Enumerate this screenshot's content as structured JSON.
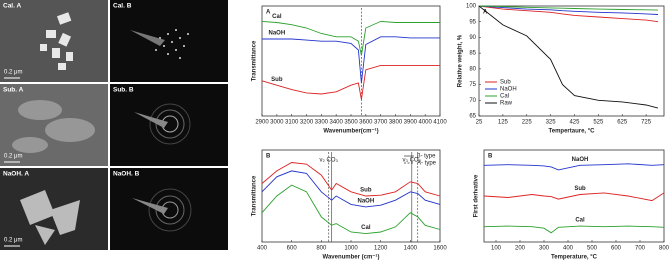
{
  "images": [
    {
      "label": "Cal. A",
      "scale": "0.2 μm"
    },
    {
      "label": "Cal. B"
    },
    {
      "label": "Sub. A",
      "scale": "0.2 μm"
    },
    {
      "label": "Sub. B"
    },
    {
      "label": "NaOH. A",
      "scale": "0.2 μm"
    },
    {
      "label": "NaOH. B"
    }
  ],
  "chart_data": [
    {
      "type": "line",
      "panel": "A",
      "x_label": "Wavenumber(cm⁻¹)",
      "y_label": "Transmittance",
      "xlim": [
        2900,
        4100
      ],
      "ylim": [
        0,
        1
      ],
      "xticks": [
        2900,
        3000,
        3100,
        3200,
        3300,
        3400,
        3500,
        3600,
        3700,
        3800,
        3900,
        4000,
        4100
      ],
      "legend": "inline-left",
      "x": [
        2900,
        3000,
        3100,
        3200,
        3300,
        3400,
        3500,
        3550,
        3570,
        3600,
        3700,
        3800,
        3900,
        4000,
        4100
      ],
      "vlines": [
        {
          "x": 3570,
          "style": "dashed"
        }
      ],
      "series": [
        {
          "name": "Cal",
          "color": "#2ca02c",
          "values": [
            0.86,
            0.85,
            0.83,
            0.8,
            0.75,
            0.72,
            0.72,
            0.68,
            0.55,
            0.8,
            0.86,
            0.85,
            0.85,
            0.85,
            0.85
          ]
        },
        {
          "name": "NaOH",
          "color": "#2233cc",
          "values": [
            0.7,
            0.7,
            0.7,
            0.69,
            0.68,
            0.68,
            0.66,
            0.6,
            0.3,
            0.65,
            0.72,
            0.72,
            0.71,
            0.71,
            0.71
          ]
        },
        {
          "name": "Sub",
          "color": "#dd2222",
          "values": [
            0.32,
            0.28,
            0.24,
            0.21,
            0.2,
            0.22,
            0.28,
            0.3,
            0.15,
            0.42,
            0.46,
            0.46,
            0.46,
            0.46,
            0.46
          ]
        }
      ]
    },
    {
      "type": "line",
      "panel": "B",
      "x_label": "Wavenumber (cm⁻¹)",
      "y_label": "Transmittance",
      "xlim": [
        400,
        1600
      ],
      "ylim": [
        0,
        1.1
      ],
      "xticks": [
        400,
        600,
        800,
        1000,
        1200,
        1400,
        1600
      ],
      "legend": "inline-middle",
      "x": [
        400,
        500,
        600,
        700,
        800,
        870,
        900,
        1000,
        1100,
        1200,
        1300,
        1400,
        1450,
        1500,
        1600
      ],
      "vlines": [
        {
          "x": 850,
          "style": "dashed",
          "label": "ν₂ CO₃"
        },
        {
          "x": 870,
          "style": "solid"
        },
        {
          "x": 1410,
          "style": "solid",
          "label": "ν₃ CO₃"
        },
        {
          "x": 1450,
          "style": "dashed"
        }
      ],
      "line_styles": [
        {
          "label": "β- type",
          "style": "solid"
        },
        {
          "label": "A- type",
          "style": "dashed"
        }
      ],
      "series": [
        {
          "name": "Sub",
          "color": "#dd2222",
          "values": [
            0.7,
            0.85,
            0.95,
            0.93,
            0.8,
            0.62,
            0.7,
            0.6,
            0.55,
            0.56,
            0.6,
            0.72,
            0.7,
            0.6,
            0.55
          ]
        },
        {
          "name": "NaOH",
          "color": "#2233cc",
          "values": [
            0.6,
            0.78,
            0.85,
            0.82,
            0.6,
            0.5,
            0.55,
            0.45,
            0.42,
            0.44,
            0.5,
            0.6,
            0.58,
            0.5,
            0.45
          ]
        },
        {
          "name": "Cal",
          "color": "#2ca02c",
          "values": [
            0.35,
            0.55,
            0.68,
            0.6,
            0.3,
            0.2,
            0.22,
            0.12,
            0.1,
            0.12,
            0.18,
            0.35,
            0.3,
            0.2,
            0.15
          ]
        }
      ]
    },
    {
      "type": "line",
      "panel": "A",
      "x_label": "Tempertaure, °C",
      "y_label": "Relative weight, %",
      "xlim": [
        25,
        800
      ],
      "ylim": [
        65,
        100
      ],
      "xticks": [
        25,
        125,
        225,
        325,
        425,
        525,
        625,
        725
      ],
      "yticks": [
        65,
        70,
        75,
        80,
        85,
        90,
        95,
        100
      ],
      "legend": "lower-left",
      "x": [
        25,
        125,
        225,
        325,
        375,
        425,
        525,
        625,
        725,
        775
      ],
      "series": [
        {
          "name": "Sub",
          "color": "#dd2222",
          "values": [
            100,
            99,
            98.5,
            98,
            97.5,
            97,
            96.5,
            96,
            95.5,
            95
          ]
        },
        {
          "name": "NaOH",
          "color": "#2233cc",
          "values": [
            100,
            99.5,
            99,
            98.8,
            98.5,
            98.3,
            98,
            97.8,
            97.5,
            97.3
          ]
        },
        {
          "name": "Cal",
          "color": "#2ca02c",
          "values": [
            100,
            99.8,
            99.6,
            99.4,
            99.3,
            99.2,
            99,
            98.9,
            98.8,
            98.7
          ]
        },
        {
          "name": "Raw",
          "color": "#111111",
          "values": [
            100,
            94,
            90.5,
            83,
            75,
            71.5,
            70,
            69.5,
            68.5,
            67.5
          ]
        }
      ]
    },
    {
      "type": "line",
      "panel": "B",
      "x_label": "Temperature, °C",
      "y_label": "First derivative",
      "xlim": [
        50,
        800
      ],
      "ylim": [
        0,
        3
      ],
      "xticks": [
        100,
        200,
        300,
        400,
        500,
        600,
        700,
        800
      ],
      "legend": "inline-middle",
      "x": [
        50,
        150,
        250,
        300,
        330,
        360,
        450,
        550,
        650,
        750,
        800
      ],
      "series": [
        {
          "name": "NaOH",
          "color": "#2233cc",
          "values": [
            2.5,
            2.52,
            2.5,
            2.48,
            2.45,
            2.35,
            2.5,
            2.52,
            2.55,
            2.5,
            2.52
          ]
        },
        {
          "name": "Sub",
          "color": "#dd2222",
          "values": [
            1.5,
            1.45,
            1.55,
            1.5,
            1.48,
            1.4,
            1.55,
            1.6,
            1.5,
            1.35,
            1.6
          ]
        },
        {
          "name": "Cal",
          "color": "#2ca02c",
          "values": [
            0.5,
            0.52,
            0.5,
            0.45,
            0.3,
            0.48,
            0.52,
            0.5,
            0.52,
            0.5,
            0.48
          ]
        }
      ]
    }
  ]
}
